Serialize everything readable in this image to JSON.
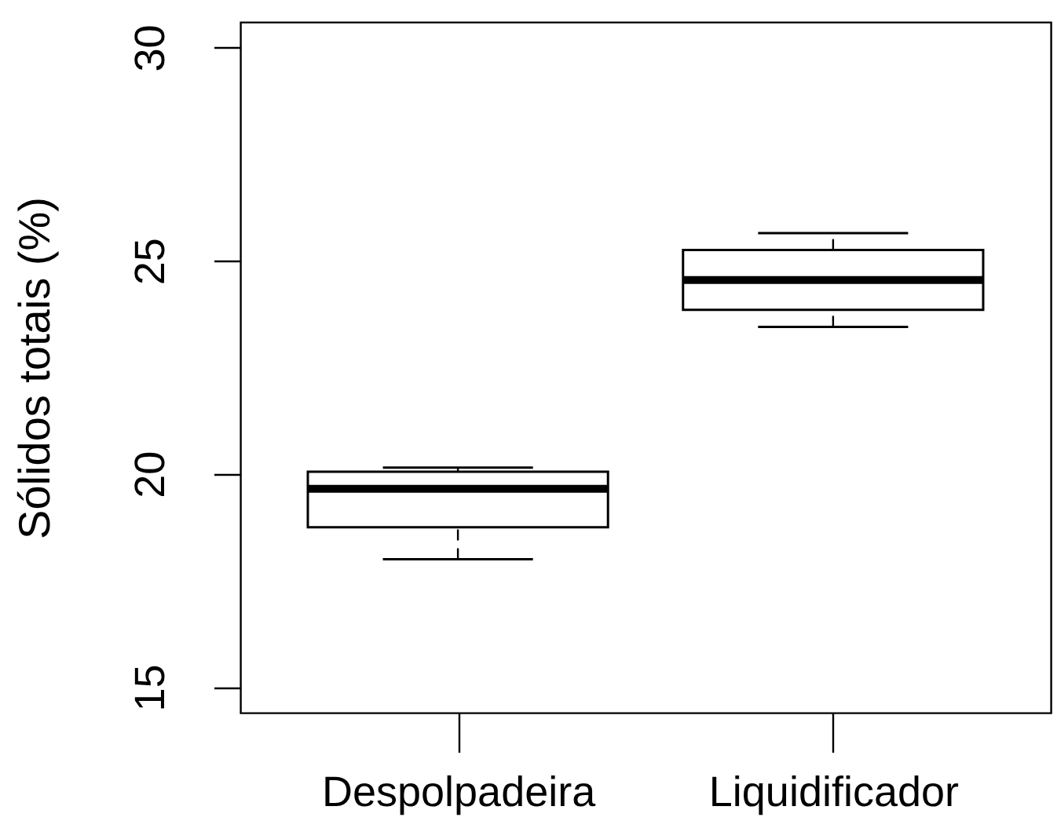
{
  "chart_data": {
    "type": "box",
    "ylabel": "Sólidos totais (%)",
    "categories": [
      "Despolpadeira",
      "Liquidificador"
    ],
    "boxes": [
      {
        "low": 18.0,
        "q1": 18.75,
        "median": 19.65,
        "q3": 20.05,
        "high": 20.15
      },
      {
        "low": 23.45,
        "q1": 23.85,
        "median": 24.55,
        "q3": 25.25,
        "high": 25.65
      }
    ],
    "ylim": [
      14.4,
      30.6
    ],
    "yticks": [
      15,
      20,
      25,
      30
    ],
    "grid": false
  }
}
